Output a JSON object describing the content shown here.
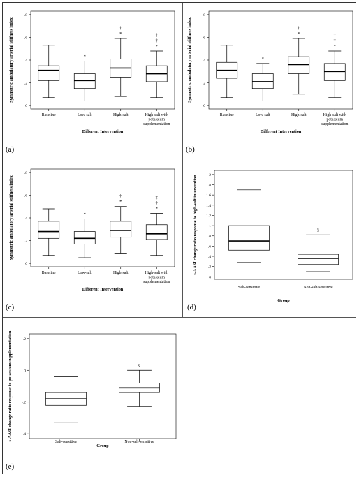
{
  "chart_data": [
    {
      "panel": "(a)",
      "type": "box",
      "ylabel": "Symmetric ambulatory arterial stiffness index",
      "xlabel": "Different Intervention",
      "yticks": [
        "0",
        ".2",
        ".4",
        ".6",
        ".8"
      ],
      "ylim": [
        -0.03,
        0.83
      ],
      "categories": [
        "Baseline",
        "Low-salt",
        "High-salt",
        "High-salt with potassium supplementation"
      ],
      "boxes": [
        {
          "whisker_low": 0.07,
          "q1": 0.22,
          "median": 0.31,
          "q3": 0.35,
          "whisker_high": 0.53,
          "marks": []
        },
        {
          "whisker_low": 0.04,
          "q1": 0.15,
          "median": 0.22,
          "q3": 0.28,
          "whisker_high": 0.39,
          "marks": [
            "*"
          ]
        },
        {
          "whisker_low": 0.08,
          "q1": 0.25,
          "median": 0.33,
          "q3": 0.41,
          "whisker_high": 0.59,
          "marks": [
            "*",
            "†"
          ]
        },
        {
          "whisker_low": 0.07,
          "q1": 0.21,
          "median": 0.28,
          "q3": 0.35,
          "whisker_high": 0.48,
          "marks": [
            "*",
            "†",
            "‡"
          ]
        }
      ]
    },
    {
      "panel": "(b)",
      "type": "box",
      "ylabel": "Symmetric ambulatory arterial stiffness index",
      "xlabel": "Different Intervention",
      "yticks": [
        "0",
        ".2",
        ".4",
        ".6",
        ".8"
      ],
      "ylim": [
        -0.03,
        0.83
      ],
      "categories": [
        "Baseline",
        "Low-salt",
        "High-salt",
        "High-salt with potassium supplementation"
      ],
      "boxes": [
        {
          "whisker_low": 0.07,
          "q1": 0.24,
          "median": 0.31,
          "q3": 0.38,
          "whisker_high": 0.53,
          "marks": []
        },
        {
          "whisker_low": 0.04,
          "q1": 0.15,
          "median": 0.21,
          "q3": 0.28,
          "whisker_high": 0.37,
          "marks": [
            "*"
          ]
        },
        {
          "whisker_low": 0.1,
          "q1": 0.28,
          "median": 0.36,
          "q3": 0.43,
          "whisker_high": 0.59,
          "marks": [
            "*",
            "†"
          ]
        },
        {
          "whisker_low": 0.07,
          "q1": 0.22,
          "median": 0.3,
          "q3": 0.37,
          "whisker_high": 0.48,
          "marks": [
            "*",
            "†",
            "‡"
          ]
        }
      ]
    },
    {
      "panel": "(c)",
      "type": "box",
      "ylabel": "Symmetric ambulatory arterial stiffness index",
      "xlabel": "Different Intervention",
      "yticks": [
        "0",
        ".2",
        ".4",
        ".6",
        ".8"
      ],
      "ylim": [
        -0.03,
        0.83
      ],
      "categories": [
        "Baseline",
        "Low-salt",
        "High-salt",
        "High-salt with potassium supplementation"
      ],
      "boxes": [
        {
          "whisker_low": 0.07,
          "q1": 0.22,
          "median": 0.28,
          "q3": 0.37,
          "whisker_high": 0.48,
          "marks": []
        },
        {
          "whisker_low": 0.05,
          "q1": 0.17,
          "median": 0.22,
          "q3": 0.28,
          "whisker_high": 0.39,
          "marks": [
            "*"
          ]
        },
        {
          "whisker_low": 0.09,
          "q1": 0.23,
          "median": 0.29,
          "q3": 0.37,
          "whisker_high": 0.5,
          "marks": [
            "*",
            "†"
          ]
        },
        {
          "whisker_low": 0.07,
          "q1": 0.21,
          "median": 0.26,
          "q3": 0.34,
          "whisker_high": 0.44,
          "marks": [
            "*",
            "†",
            "‡"
          ]
        }
      ]
    },
    {
      "panel": "(d)",
      "type": "box",
      "ylabel": "s-AASI change ratio response to high-salt intervention",
      "xlabel": "Group",
      "yticks": [
        "0",
        ".2",
        ".4",
        ".6",
        ".8",
        "1",
        "1.2",
        "1.4",
        "1.6",
        "1.8",
        "2"
      ],
      "ylim": [
        -0.05,
        2.08
      ],
      "categories": [
        "Salt-sensitive",
        "Non-salt-sensitive"
      ],
      "boxes": [
        {
          "whisker_low": 0.28,
          "q1": 0.52,
          "median": 0.7,
          "q3": 1.0,
          "whisker_high": 1.7,
          "marks": []
        },
        {
          "whisker_low": 0.1,
          "q1": 0.24,
          "median": 0.36,
          "q3": 0.44,
          "whisker_high": 0.82,
          "marks": [
            "§"
          ]
        }
      ]
    },
    {
      "panel": "(e)",
      "type": "box",
      "ylabel": "s-AASI change ratio response to potassium supplementation",
      "xlabel": "Group",
      "yticks": [
        "-.4",
        "-.2",
        "0",
        ".2"
      ],
      "ylim": [
        -0.43,
        0.23
      ],
      "categories": [
        "Salt-sensitive",
        "Non-salt-sensitive"
      ],
      "boxes": [
        {
          "whisker_low": -0.33,
          "q1": -0.22,
          "median": -0.18,
          "q3": -0.14,
          "whisker_high": -0.04,
          "marks": []
        },
        {
          "whisker_low": -0.23,
          "q1": -0.14,
          "median": -0.11,
          "q3": -0.08,
          "whisker_high": 0.0,
          "marks": [
            "§"
          ]
        }
      ]
    }
  ]
}
